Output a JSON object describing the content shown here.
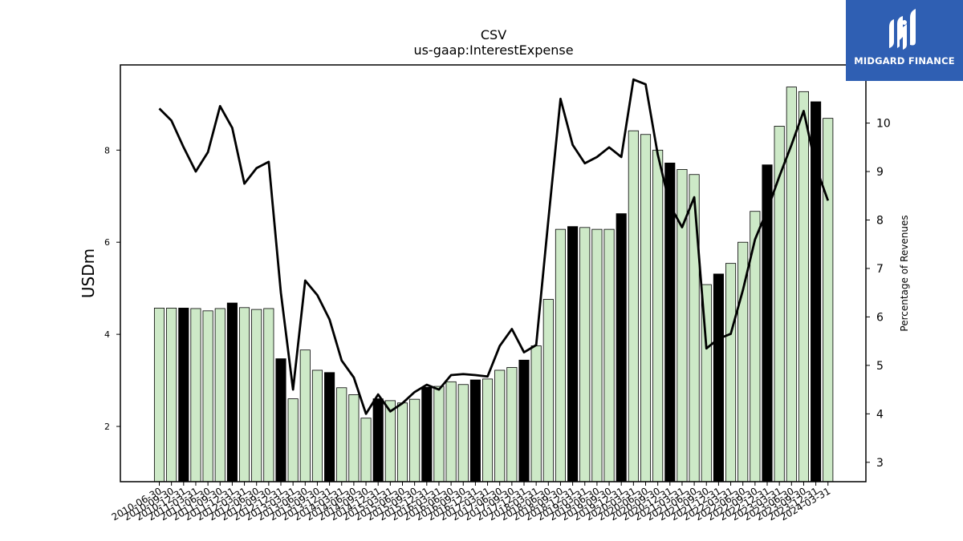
{
  "chart_data": {
    "type": "bar+line",
    "title": "CSV",
    "subtitle": "us-gaap:InterestExpense",
    "ylabel": "USDm",
    "ylabel_right": "Percentage of Revenues",
    "ylim": [
      0.8,
      9.85
    ],
    "ylim_right": [
      2.6,
      11.2
    ],
    "yticks": [
      2,
      4,
      6,
      8
    ],
    "yticks_right": [
      3,
      4,
      5,
      6,
      7,
      8,
      9,
      10
    ],
    "grid": false,
    "legend": "none",
    "categories": [
      "2010-06-30",
      "2010-09-30",
      "2010-12-31",
      "2011-03-31",
      "2011-06-30",
      "2011-09-30",
      "2011-12-31",
      "2012-03-31",
      "2012-06-30",
      "2012-09-30",
      "2012-12-31",
      "2013-03-31",
      "2013-06-30",
      "2013-09-30",
      "2013-12-31",
      "2014-03-31",
      "2014-06-30",
      "2014-09-30",
      "2014-12-31",
      "2015-03-31",
      "2015-06-30",
      "2015-09-30",
      "2015-12-31",
      "2016-03-31",
      "2016-06-30",
      "2016-09-30",
      "2016-12-31",
      "2017-03-31",
      "2017-06-30",
      "2017-09-30",
      "2017-12-31",
      "2018-03-31",
      "2018-06-30",
      "2018-09-30",
      "2018-12-31",
      "2019-03-31",
      "2019-06-30",
      "2019-09-30",
      "2019-12-31",
      "2020-03-31",
      "2020-06-30",
      "2020-09-30",
      "2020-12-31",
      "2021-03-31",
      "2021-06-30",
      "2021-09-30",
      "2021-12-31",
      "2022-03-31",
      "2022-06-30",
      "2022-09-30",
      "2022-12-31",
      "2023-03-31",
      "2023-06-30",
      "2023-09-30",
      "2023-12-31",
      "2024-03-31"
    ],
    "series": [
      {
        "type": "bar",
        "values": [
          4.57,
          4.57,
          4.57,
          4.56,
          4.51,
          4.56,
          4.68,
          4.58,
          4.54,
          4.56,
          3.47,
          2.6,
          3.66,
          3.22,
          3.17,
          2.84,
          2.69,
          2.18,
          2.6,
          2.56,
          2.51,
          2.59,
          2.85,
          2.87,
          2.97,
          2.91,
          3.01,
          3.03,
          3.22,
          3.28,
          3.44,
          3.75,
          4.76,
          6.28,
          6.34,
          6.32,
          6.28,
          6.28,
          6.62,
          8.42,
          8.34,
          8.0,
          7.72,
          7.58,
          7.47,
          5.08,
          5.31,
          5.54,
          6.0,
          6.67,
          7.68,
          8.52,
          9.37,
          9.27,
          9.05,
          8.69
        ],
        "highlight_color": "#000000",
        "color": "#cde9c7",
        "highlight_categories": [
          "2010-12-31",
          "2011-12-31",
          "2012-12-31",
          "2013-12-31",
          "2014-12-31",
          "2015-12-31",
          "2016-12-31",
          "2017-12-31",
          "2018-12-31",
          "2019-12-31",
          "2020-12-31",
          "2021-12-31",
          "2022-12-31",
          "2023-12-31"
        ]
      },
      {
        "type": "line",
        "axis": "right",
        "color": "#000000",
        "values": [
          10.3,
          10.05,
          9.5,
          9.0,
          9.4,
          10.35,
          9.9,
          8.75,
          9.07,
          9.2,
          6.5,
          4.5,
          6.75,
          6.45,
          5.95,
          5.1,
          4.75,
          4.0,
          4.4,
          4.05,
          4.22,
          4.45,
          4.6,
          4.5,
          4.8,
          4.82,
          4.8,
          4.77,
          5.4,
          5.75,
          5.27,
          5.42,
          8.0,
          10.5,
          9.55,
          9.17,
          9.3,
          9.5,
          9.3,
          10.9,
          10.8,
          9.35,
          8.3,
          7.85,
          8.47,
          5.35,
          5.55,
          5.65,
          6.55,
          7.6,
          8.2,
          8.9,
          9.55,
          10.25,
          9.1,
          8.4
        ]
      }
    ]
  },
  "logo": {
    "text": "MIDGARD FINANCE",
    "icon": "midgard-logo-icon",
    "background": "#2f5fb3"
  }
}
